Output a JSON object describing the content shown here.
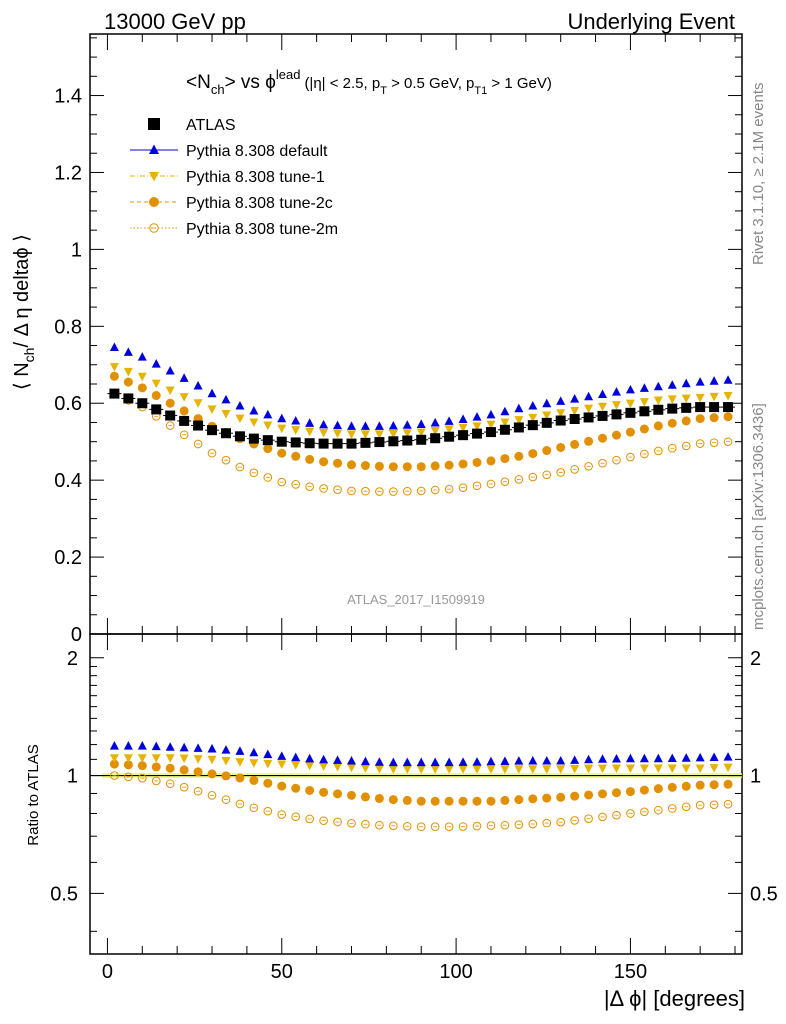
{
  "header": {
    "left": "13000 GeV pp",
    "right": "Underlying Event"
  },
  "side_labels": {
    "rivet": "Rivet 3.1.10, ≥ 2.1M events",
    "mcplots": "mcplots.cern.ch [arXiv:1306.3436]"
  },
  "chart_data": [
    {
      "type": "scatter",
      "panel": "main",
      "title_main": "<N",
      "title_sub": "ch",
      "title_mid": "> vs ϕ",
      "title_sup": "lead",
      "cuts": {
        "a": "(|η| < 2.5, p",
        "a_sub": "T",
        "b": " > 0.5 GeV, p",
        "b_sub": "T1",
        "c": " > 1 GeV)"
      },
      "ylabel": {
        "pre": "⟨ N",
        "sub": "ch",
        "post": "/ Δ η deltaϕ ⟩"
      },
      "watermark": "ATLAS_2017_I1509919",
      "xlim": [
        -5,
        182
      ],
      "ylim": [
        0,
        1.56
      ],
      "yticks": [
        {
          "v": 0,
          "label": "0"
        },
        {
          "v": 0.2,
          "label": "0.2"
        },
        {
          "v": 0.4,
          "label": "0.4"
        },
        {
          "v": 0.6,
          "label": "0.6"
        },
        {
          "v": 0.8,
          "label": "0.8"
        },
        {
          "v": 1.0,
          "label": "1"
        },
        {
          "v": 1.2,
          "label": "1.2"
        },
        {
          "v": 1.4,
          "label": "1.4"
        }
      ],
      "legend_position": "top-left",
      "x_note": "points at 2, 6, 10, ..., 178 degrees",
      "series": [
        {
          "name": "ATLAS",
          "color": "#000000",
          "marker": "square",
          "knots": [
            [
              2,
              0.625
            ],
            [
              10,
              0.6
            ],
            [
              20,
              0.56
            ],
            [
              30,
              0.53
            ],
            [
              40,
              0.51
            ],
            [
              50,
              0.5
            ],
            [
              60,
              0.495
            ],
            [
              70,
              0.495
            ],
            [
              80,
              0.5
            ],
            [
              90,
              0.505
            ],
            [
              100,
              0.515
            ],
            [
              110,
              0.525
            ],
            [
              120,
              0.54
            ],
            [
              130,
              0.555
            ],
            [
              140,
              0.565
            ],
            [
              150,
              0.575
            ],
            [
              160,
              0.585
            ],
            [
              170,
              0.59
            ],
            [
              178,
              0.59
            ]
          ]
        },
        {
          "name": "Pythia 8.308 default",
          "color": "#0000dd",
          "marker": "triangle-up",
          "knots": [
            [
              2,
              0.745
            ],
            [
              10,
              0.72
            ],
            [
              20,
              0.675
            ],
            [
              30,
              0.625
            ],
            [
              40,
              0.585
            ],
            [
              50,
              0.56
            ],
            [
              60,
              0.545
            ],
            [
              70,
              0.54
            ],
            [
              80,
              0.54
            ],
            [
              90,
              0.545
            ],
            [
              100,
              0.555
            ],
            [
              110,
              0.57
            ],
            [
              120,
              0.59
            ],
            [
              130,
              0.605
            ],
            [
              140,
              0.62
            ],
            [
              150,
              0.635
            ],
            [
              160,
              0.645
            ],
            [
              170,
              0.655
            ],
            [
              178,
              0.66
            ]
          ]
        },
        {
          "name": "Pythia 8.308 tune-1",
          "color": "#e6b400",
          "marker": "triangle-down",
          "knots": [
            [
              2,
              0.695
            ],
            [
              10,
              0.67
            ],
            [
              20,
              0.625
            ],
            [
              30,
              0.585
            ],
            [
              40,
              0.555
            ],
            [
              50,
              0.535
            ],
            [
              60,
              0.525
            ],
            [
              70,
              0.52
            ],
            [
              80,
              0.52
            ],
            [
              90,
              0.525
            ],
            [
              100,
              0.535
            ],
            [
              110,
              0.545
            ],
            [
              120,
              0.56
            ],
            [
              130,
              0.575
            ],
            [
              140,
              0.59
            ],
            [
              150,
              0.6
            ],
            [
              160,
              0.61
            ],
            [
              170,
              0.615
            ],
            [
              178,
              0.62
            ]
          ]
        },
        {
          "name": "Pythia 8.308 tune-2c",
          "color": "#e09000",
          "marker": "circle",
          "knots": [
            [
              2,
              0.67
            ],
            [
              10,
              0.64
            ],
            [
              20,
              0.59
            ],
            [
              30,
              0.54
            ],
            [
              40,
              0.5
            ],
            [
              50,
              0.47
            ],
            [
              60,
              0.45
            ],
            [
              70,
              0.44
            ],
            [
              80,
              0.435
            ],
            [
              90,
              0.435
            ],
            [
              100,
              0.44
            ],
            [
              110,
              0.45
            ],
            [
              120,
              0.465
            ],
            [
              130,
              0.485
            ],
            [
              140,
              0.505
            ],
            [
              150,
              0.525
            ],
            [
              160,
              0.545
            ],
            [
              170,
              0.56
            ],
            [
              178,
              0.565
            ]
          ]
        },
        {
          "name": "Pythia 8.308 tune-2m",
          "color": "#e09000",
          "marker": "circle-open",
          "knots": [
            [
              2,
              0.625
            ],
            [
              10,
              0.59
            ],
            [
              20,
              0.53
            ],
            [
              30,
              0.47
            ],
            [
              40,
              0.425
            ],
            [
              50,
              0.395
            ],
            [
              60,
              0.38
            ],
            [
              70,
              0.372
            ],
            [
              80,
              0.37
            ],
            [
              90,
              0.372
            ],
            [
              100,
              0.378
            ],
            [
              110,
              0.39
            ],
            [
              120,
              0.405
            ],
            [
              130,
              0.42
            ],
            [
              140,
              0.44
            ],
            [
              150,
              0.46
            ],
            [
              160,
              0.48
            ],
            [
              170,
              0.495
            ],
            [
              178,
              0.5
            ]
          ]
        }
      ]
    },
    {
      "type": "scatter",
      "panel": "ratio",
      "ylabel": "Ratio to ATLAS",
      "xlabel": "|Δ ϕ| [degrees]",
      "xlim": [
        -5,
        182
      ],
      "ylim": [
        0.35,
        2.3
      ],
      "log_y": true,
      "xticks": [
        {
          "v": 0,
          "label": "0"
        },
        {
          "v": 50,
          "label": "50"
        },
        {
          "v": 100,
          "label": "100"
        },
        {
          "v": 150,
          "label": "150"
        }
      ],
      "yticks": [
        {
          "v": 0.5,
          "label": "0.5"
        },
        {
          "v": 1,
          "label": "1"
        },
        {
          "v": 2,
          "label": "2"
        }
      ],
      "series": [
        {
          "name": "Pythia 8.308 default",
          "knots": [
            [
              2,
              1.19
            ],
            [
              10,
              1.19
            ],
            [
              20,
              1.18
            ],
            [
              30,
              1.17
            ],
            [
              40,
              1.15
            ],
            [
              50,
              1.12
            ],
            [
              60,
              1.1
            ],
            [
              70,
              1.09
            ],
            [
              80,
              1.08
            ],
            [
              90,
              1.08
            ],
            [
              100,
              1.08
            ],
            [
              110,
              1.085
            ],
            [
              120,
              1.09
            ],
            [
              130,
              1.09
            ],
            [
              140,
              1.1
            ],
            [
              150,
              1.105
            ],
            [
              160,
              1.105
            ],
            [
              170,
              1.11
            ],
            [
              178,
              1.115
            ]
          ]
        },
        {
          "name": "Pythia 8.308 tune-1",
          "knots": [
            [
              2,
              1.11
            ],
            [
              10,
              1.11
            ],
            [
              20,
              1.11
            ],
            [
              30,
              1.1
            ],
            [
              40,
              1.08
            ],
            [
              50,
              1.07
            ],
            [
              60,
              1.06
            ],
            [
              70,
              1.05
            ],
            [
              80,
              1.04
            ],
            [
              90,
              1.04
            ],
            [
              100,
              1.04
            ],
            [
              110,
              1.04
            ],
            [
              120,
              1.04
            ],
            [
              130,
              1.04
            ],
            [
              140,
              1.045
            ],
            [
              150,
              1.045
            ],
            [
              160,
              1.045
            ],
            [
              170,
              1.045
            ],
            [
              178,
              1.05
            ]
          ]
        },
        {
          "name": "Pythia 8.308 tune-2c",
          "knots": [
            [
              2,
              1.07
            ],
            [
              10,
              1.06
            ],
            [
              20,
              1.04
            ],
            [
              30,
              1.01
            ],
            [
              40,
              0.98
            ],
            [
              50,
              0.94
            ],
            [
              60,
              0.91
            ],
            [
              70,
              0.89
            ],
            [
              80,
              0.87
            ],
            [
              90,
              0.86
            ],
            [
              100,
              0.86
            ],
            [
              110,
              0.86
            ],
            [
              120,
              0.87
            ],
            [
              130,
              0.88
            ],
            [
              140,
              0.895
            ],
            [
              150,
              0.91
            ],
            [
              160,
              0.93
            ],
            [
              170,
              0.945
            ],
            [
              178,
              0.95
            ]
          ]
        },
        {
          "name": "Pythia 8.308 tune-2m",
          "knots": [
            [
              2,
              1.0
            ],
            [
              10,
              0.985
            ],
            [
              20,
              0.945
            ],
            [
              30,
              0.89
            ],
            [
              40,
              0.835
            ],
            [
              50,
              0.795
            ],
            [
              60,
              0.77
            ],
            [
              70,
              0.755
            ],
            [
              80,
              0.745
            ],
            [
              90,
              0.74
            ],
            [
              100,
              0.74
            ],
            [
              110,
              0.745
            ],
            [
              120,
              0.75
            ],
            [
              130,
              0.76
            ],
            [
              140,
              0.78
            ],
            [
              150,
              0.8
            ],
            [
              160,
              0.82
            ],
            [
              170,
              0.84
            ],
            [
              178,
              0.845
            ]
          ]
        }
      ]
    }
  ]
}
